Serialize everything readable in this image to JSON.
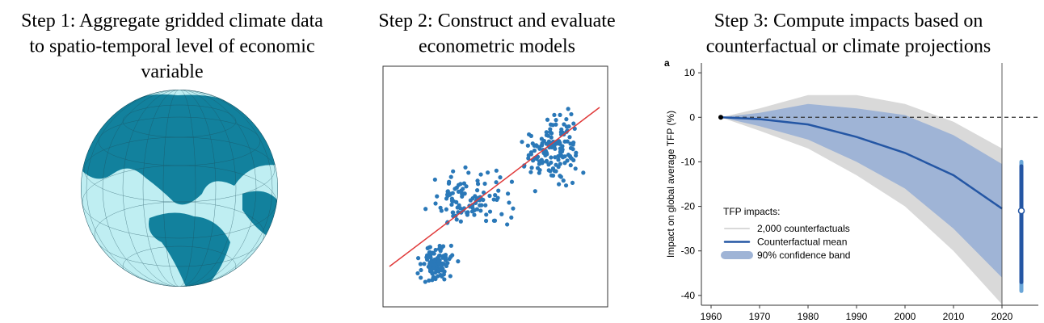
{
  "panels": [
    {
      "title": [
        "Step 1: Aggregate gridded climate data",
        "to spatio-temporal level of economic",
        "variable"
      ]
    },
    {
      "title": [
        "Step 2: Construct and evaluate",
        "econometric models"
      ]
    },
    {
      "title": [
        "Step 3: Compute impacts based on",
        "counterfactual or climate projections"
      ]
    }
  ],
  "chart_data": {
    "type": "line",
    "panel_label": "a",
    "ylabel": "Impact on global average TFP (%)",
    "x": [
      1962,
      1970,
      1980,
      1990,
      2000,
      2010,
      2020
    ],
    "series": [
      {
        "name": "Counterfactual mean",
        "color": "#2456a4",
        "values": [
          0,
          -0.4,
          -1.6,
          -4.4,
          -8,
          -13,
          -20.5
        ]
      }
    ],
    "band": {
      "name": "90% confidence band",
      "color": "#9fb4d6",
      "upper": [
        0,
        1,
        3,
        2,
        0.5,
        -4,
        -10.5
      ],
      "lower": [
        0,
        -2,
        -5,
        -10,
        -16,
        -25,
        -36
      ]
    },
    "counterfactuals": {
      "name": "2,000 counterfactuals",
      "color": "#d9d9d9",
      "upper": [
        0,
        2,
        5,
        5,
        3,
        -1,
        -7
      ],
      "lower": [
        0,
        -3,
        -7,
        -13,
        -20,
        -30,
        -42
      ]
    },
    "projection": {
      "x": 2024,
      "value": -21,
      "high": -11,
      "low": -37,
      "outer_high": -10,
      "outer_low": -39,
      "color": "#2456a4",
      "outer_color": "#6aa6d8"
    },
    "legend_title": "TFP impacts:",
    "xlim": [
      1958,
      2027.5
    ],
    "ylim": [
      -42.2,
      12.2
    ],
    "xticks": [
      1960,
      1970,
      1980,
      1990,
      2000,
      2010,
      2020
    ],
    "yticks": [
      10,
      0,
      -10,
      -20,
      -30,
      -40
    ]
  }
}
